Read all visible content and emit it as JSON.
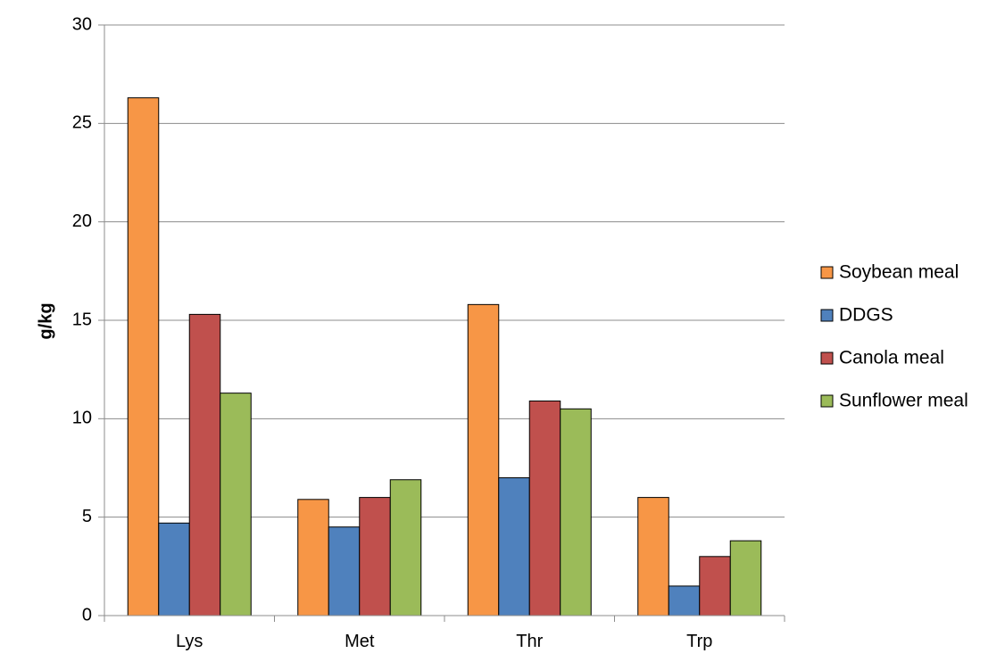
{
  "chart_data": {
    "type": "bar",
    "title": "",
    "xlabel": "",
    "ylabel": "g/kg",
    "ylim": [
      0,
      30
    ],
    "yticks": [
      0,
      5,
      10,
      15,
      20,
      25,
      30
    ],
    "grid": true,
    "legend_position": "right",
    "categories": [
      "Lys",
      "Met",
      "Thr",
      "Trp"
    ],
    "series": [
      {
        "name": "Soybean meal",
        "color": "#f79646",
        "values": [
          26.3,
          5.9,
          15.8,
          6.0
        ]
      },
      {
        "name": "DDGS",
        "color": "#4f81bd",
        "values": [
          4.7,
          4.5,
          7.0,
          1.5
        ]
      },
      {
        "name": "Canola meal",
        "color": "#c0504d",
        "values": [
          15.3,
          6.0,
          10.9,
          3.0
        ]
      },
      {
        "name": "Sunflower meal",
        "color": "#9bbb59",
        "values": [
          11.3,
          6.9,
          10.5,
          3.8
        ]
      }
    ]
  }
}
